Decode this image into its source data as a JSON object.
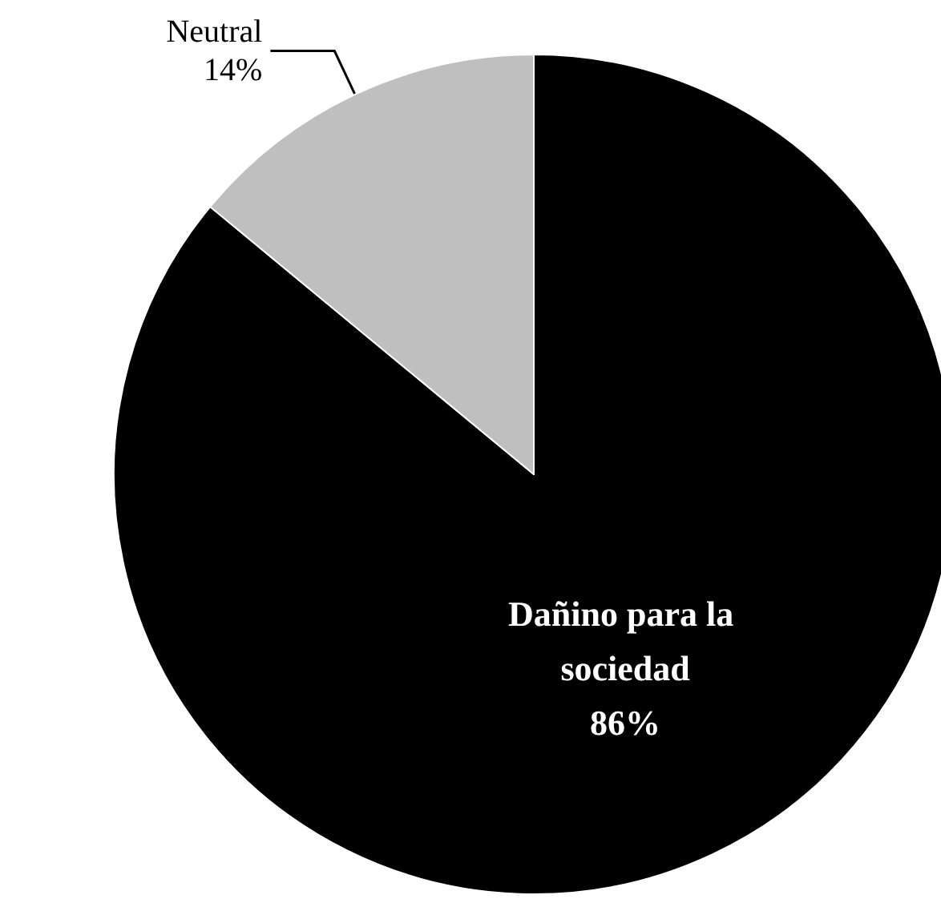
{
  "chart_data": {
    "type": "pie",
    "categories": [
      "Dañino para la sociedad",
      "Neutral"
    ],
    "values": [
      86,
      14
    ],
    "colors": [
      "#000000",
      "#bfbfbf"
    ],
    "value_labels": [
      "86%",
      "14%"
    ],
    "legend": false
  }
}
